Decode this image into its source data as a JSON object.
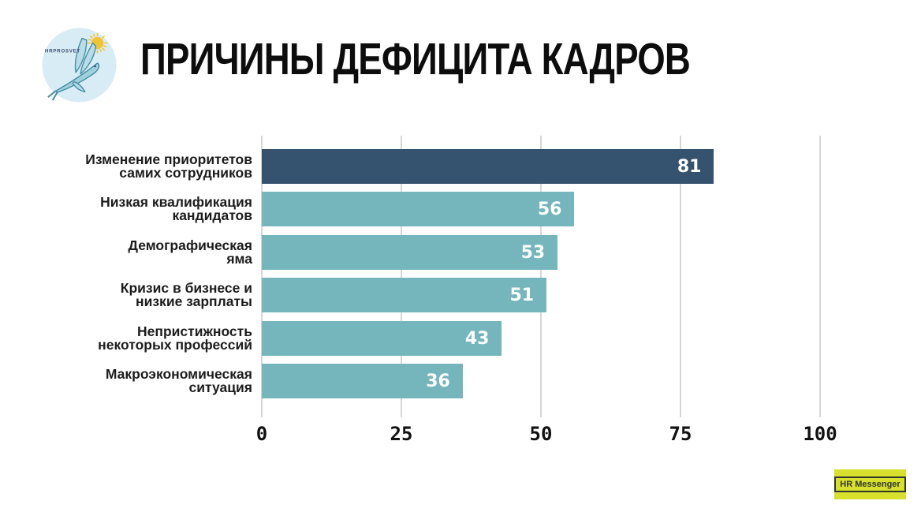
{
  "title": "ПРИЧИНЫ ДЕФИЦИТА КАДРОВ",
  "logo": {
    "text": "HRPROSVET"
  },
  "badge": {
    "label": "HR Messenger"
  },
  "chart_data": {
    "type": "bar",
    "orientation": "horizontal",
    "categories": [
      "Изменение приоритетов\nсамих сотрудников",
      "Низкая квалификация\nкандидатов",
      "Демографическая\nяма",
      "Кризис в бизнесе и\nнизкие зарплаты",
      "Непристижность\nнекоторых профессий",
      "Макроэкономическая\nситуация"
    ],
    "values": [
      81,
      56,
      53,
      51,
      43,
      36
    ],
    "x_ticks": [
      "0",
      "25",
      "50",
      "75",
      "100"
    ],
    "xlim": [
      0,
      100
    ],
    "grid": true,
    "legend": false,
    "highlight_index": 0,
    "value_labels": "inside-end"
  },
  "colors": {
    "bar_highlight": "#35526e",
    "bar_normal": "#74b6bc",
    "value_label": "#ffffff",
    "gridline": "#d6d6d6",
    "title_text": "#0d0d0d",
    "category_text": "#1c1c1c",
    "badge_bg": "#d6e02d",
    "badge_border": "#32362a",
    "logo_circle": "#d8ecf5",
    "sun": "#f2c435",
    "fish_stroke": "#418da3",
    "fish_fill": "#b8dde6",
    "logo_text": "#3b5070"
  }
}
